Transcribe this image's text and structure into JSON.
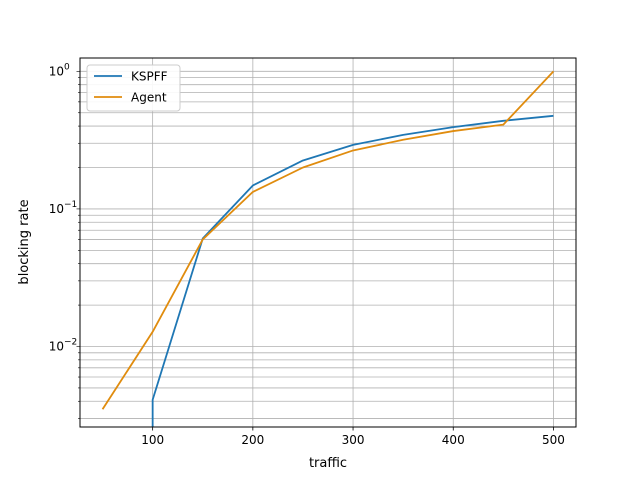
{
  "chart_data": {
    "type": "line",
    "xlabel": "traffic",
    "ylabel": "blocking rate",
    "yscale": "log",
    "xlim": [
      27.5,
      522.5
    ],
    "ylim": [
      0.0026,
      1.25
    ],
    "grid": "major and minor",
    "legend_position": "upper-left",
    "x_ticks": [
      100,
      200,
      300,
      400,
      500
    ],
    "x_tick_labels": [
      "100",
      "200",
      "300",
      "400",
      "500"
    ],
    "y_major_ticks": [
      0.01,
      0.1,
      1
    ],
    "y_tick_labels": [
      {
        "base": "10",
        "exp": "−2"
      },
      {
        "base": "10",
        "exp": "−1"
      },
      {
        "base": "10",
        "exp": "0"
      }
    ],
    "series": [
      {
        "name": "KSPFF",
        "color": "#1f77b4",
        "x": [
          100,
          100,
          150,
          200,
          250,
          300,
          350,
          400,
          450,
          500
        ],
        "y": [
          0.0026,
          0.0041,
          0.061,
          0.148,
          0.225,
          0.292,
          0.345,
          0.393,
          0.437,
          0.475
        ]
      },
      {
        "name": "Agent",
        "color": "#e08c0e",
        "x": [
          50,
          100,
          150,
          200,
          250,
          300,
          350,
          400,
          450,
          500
        ],
        "y": [
          0.0035,
          0.0128,
          0.06,
          0.133,
          0.2,
          0.266,
          0.318,
          0.368,
          0.41,
          1.0
        ]
      }
    ]
  }
}
